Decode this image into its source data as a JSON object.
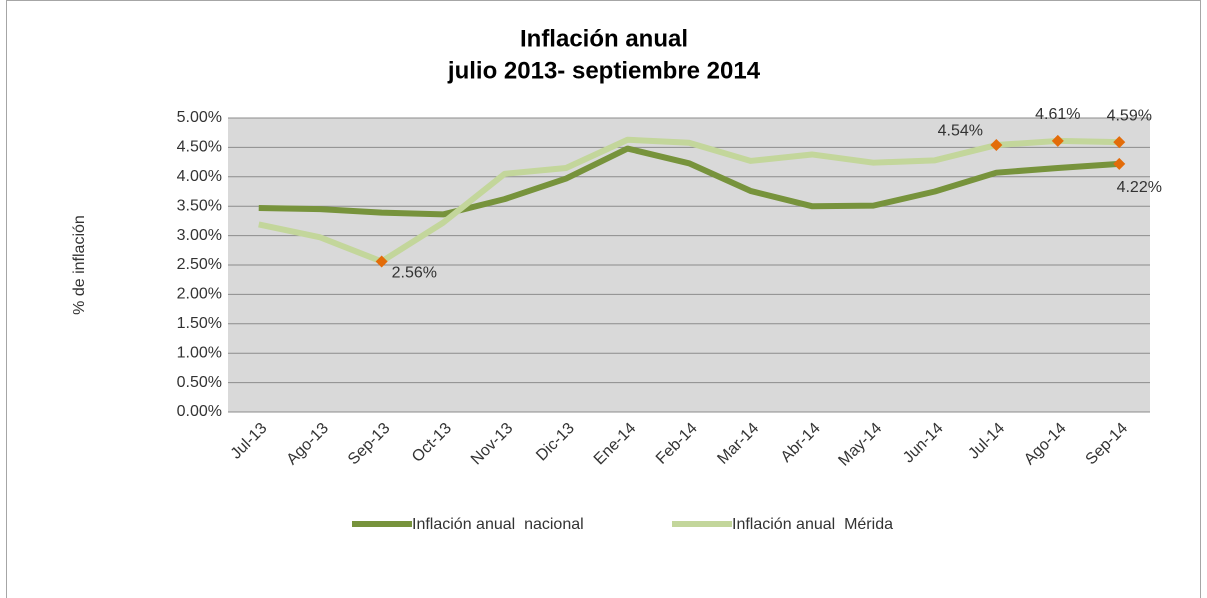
{
  "chart_data": {
    "type": "line",
    "title": "Inflación anual",
    "subtitle": "julio 2013- septiembre 2014",
    "y_label": "% de inflación",
    "categories": [
      "Jul-13",
      "Ago-13",
      "Sep-13",
      "Oct-13",
      "Nov-13",
      "Dic-13",
      "Ene-14",
      "Feb-14",
      "Mar-14",
      "Abr-14",
      "May-14",
      "Jun-14",
      "Jul-14",
      "Ago-14",
      "Sep-14"
    ],
    "series": [
      {
        "name": "Inflación anual  nacional",
        "color": "#77933c",
        "values": [
          3.47,
          3.45,
          3.39,
          3.36,
          3.62,
          3.97,
          4.48,
          4.23,
          3.76,
          3.5,
          3.51,
          3.75,
          4.07,
          4.15,
          4.22
        ],
        "value_labels": [
          null,
          null,
          null,
          null,
          null,
          null,
          null,
          null,
          null,
          null,
          null,
          null,
          null,
          null,
          "4.22%"
        ]
      },
      {
        "name": "Inflación anual  Mérida",
        "color": "#c3d69b",
        "values": [
          3.19,
          2.97,
          2.56,
          3.22,
          4.05,
          4.15,
          4.63,
          4.58,
          4.27,
          4.38,
          4.24,
          4.28,
          4.54,
          4.61,
          4.59
        ],
        "value_labels": [
          null,
          null,
          "2.56%",
          null,
          null,
          null,
          null,
          null,
          null,
          null,
          null,
          null,
          "4.54%",
          "4.61%",
          "4.59%"
        ]
      }
    ],
    "marker_color": "#e36c09",
    "ylim": [
      0,
      5
    ],
    "yticks": [
      {
        "value": 0,
        "label": "0.00%"
      },
      {
        "value": 0.5,
        "label": "0.50%"
      },
      {
        "value": 1,
        "label": "1.00%"
      },
      {
        "value": 1.5,
        "label": "1.50%"
      },
      {
        "value": 2,
        "label": "2.00%"
      },
      {
        "value": 2.5,
        "label": "2.50%"
      },
      {
        "value": 3,
        "label": "3.00%"
      },
      {
        "value": 3.5,
        "label": "3.50%"
      },
      {
        "value": 4,
        "label": "4.00%"
      },
      {
        "value": 4.5,
        "label": "4.50%"
      },
      {
        "value": 5,
        "label": "5.00%"
      }
    ],
    "grid": true,
    "legend": "bottom"
  }
}
